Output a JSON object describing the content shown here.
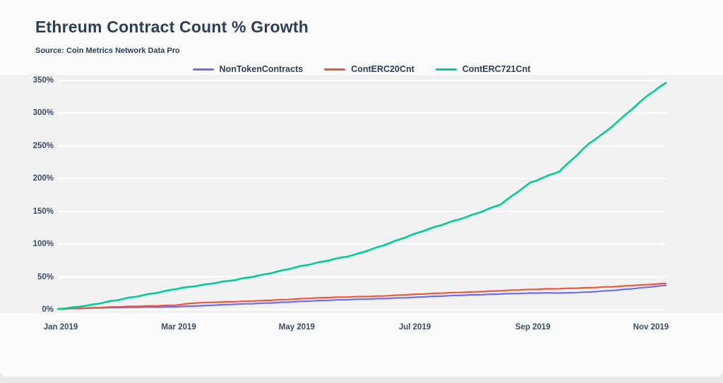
{
  "chart": {
    "title": "Ethreum Contract Count % Growth",
    "source": "Source: Coin Metrics Network Data Pro"
  },
  "colors": {
    "title_text": "#2a3f5f",
    "tick_text": "#3b4c6b",
    "card_bg": "#fbfbfb",
    "plot_band_bg": "#f2f2f2",
    "gridline": "#ffffff",
    "page_strip": "#e9e9e9",
    "series_blue": "#6B70F2",
    "series_red": "#EF553B",
    "series_green": "#00CC96"
  },
  "chart_data": {
    "type": "line",
    "title": "Ethreum Contract Count % Growth",
    "source": "Source: Coin Metrics Network Data Pro",
    "x_unit": "months since Jan 2019",
    "xlim": [
      0,
      10.3
    ],
    "ylim": [
      0,
      350
    ],
    "grid": true,
    "legend_position": "top-center",
    "x_ticks": [
      {
        "v": 0,
        "label": "Jan 2019"
      },
      {
        "v": 2,
        "label": "Mar 2019"
      },
      {
        "v": 4,
        "label": "May 2019"
      },
      {
        "v": 6,
        "label": "Jul 2019"
      },
      {
        "v": 8,
        "label": "Sep 2019"
      },
      {
        "v": 10,
        "label": "Nov 2019"
      }
    ],
    "y_ticks": [
      {
        "v": 0,
        "label": "0%"
      },
      {
        "v": 50,
        "label": "50%"
      },
      {
        "v": 100,
        "label": "100%"
      },
      {
        "v": 150,
        "label": "150%"
      },
      {
        "v": 200,
        "label": "200%"
      },
      {
        "v": 250,
        "label": "250%"
      },
      {
        "v": 300,
        "label": "300%"
      },
      {
        "v": 350,
        "label": "350%"
      }
    ],
    "series": [
      {
        "name": "NonTokenContracts",
        "color": "#6B70F2",
        "width": 2.2,
        "wobble": 0.35,
        "points": [
          [
            0,
            0
          ],
          [
            0.5,
            1
          ],
          [
            1,
            2
          ],
          [
            1.5,
            2.8
          ],
          [
            2,
            3.5
          ],
          [
            2.5,
            5
          ],
          [
            3,
            7
          ],
          [
            3.5,
            9
          ],
          [
            4,
            11
          ],
          [
            4.5,
            12.8
          ],
          [
            5,
            14.5
          ],
          [
            5.5,
            16
          ],
          [
            6,
            17.5
          ],
          [
            6.5,
            19.5
          ],
          [
            7,
            21.5
          ],
          [
            7.5,
            23
          ],
          [
            8,
            24
          ],
          [
            8.6,
            24.5
          ],
          [
            9,
            26
          ],
          [
            9.5,
            29
          ],
          [
            10,
            33
          ],
          [
            10.3,
            36
          ]
        ]
      },
      {
        "name": "ContERC20Cnt",
        "color": "#EF553B",
        "width": 2.2,
        "wobble": 0.35,
        "points": [
          [
            0,
            0
          ],
          [
            0.5,
            1.5
          ],
          [
            1,
            3
          ],
          [
            1.5,
            4.5
          ],
          [
            2,
            6
          ],
          [
            2.3,
            9
          ],
          [
            3,
            11
          ],
          [
            3.5,
            13
          ],
          [
            4,
            15
          ],
          [
            4.5,
            17
          ],
          [
            5,
            18.5
          ],
          [
            5.5,
            20
          ],
          [
            6,
            22
          ],
          [
            6.5,
            24
          ],
          [
            7,
            26
          ],
          [
            7.5,
            28
          ],
          [
            8,
            29.5
          ],
          [
            8.5,
            31
          ],
          [
            9,
            32.5
          ],
          [
            9.5,
            34.5
          ],
          [
            10,
            37
          ],
          [
            10.3,
            39
          ]
        ]
      },
      {
        "name": "ContERC721Cnt",
        "color": "#00CC96",
        "width": 2.6,
        "wobble": 0.8,
        "points": [
          [
            0,
            0
          ],
          [
            0.25,
            2
          ],
          [
            0.5,
            5
          ],
          [
            1,
            13
          ],
          [
            1.5,
            22
          ],
          [
            2,
            31
          ],
          [
            2.5,
            37
          ],
          [
            3,
            44
          ],
          [
            3.5,
            53
          ],
          [
            4,
            63
          ],
          [
            4.5,
            72
          ],
          [
            5,
            82
          ],
          [
            5.5,
            97
          ],
          [
            6,
            113
          ],
          [
            6.5,
            128
          ],
          [
            7,
            143
          ],
          [
            7.5,
            160
          ],
          [
            8,
            192
          ],
          [
            8.5,
            210
          ],
          [
            9,
            253
          ],
          [
            9.3,
            272
          ],
          [
            9.6,
            295
          ],
          [
            10,
            326
          ],
          [
            10.3,
            345
          ]
        ]
      }
    ]
  }
}
